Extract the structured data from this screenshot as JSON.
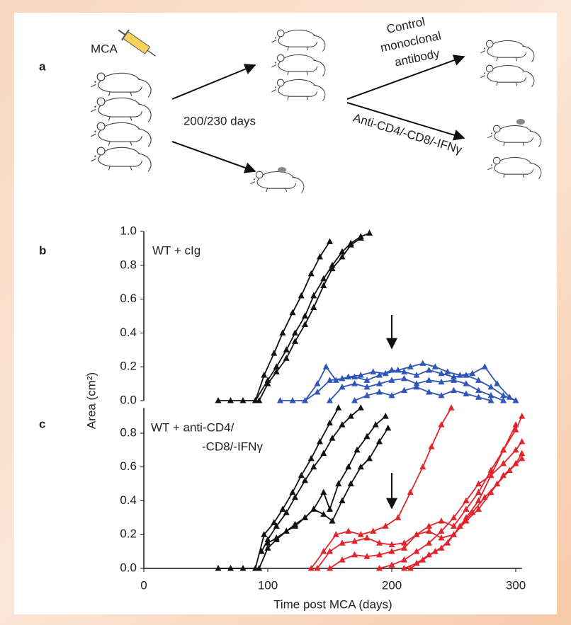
{
  "panel_a": {
    "label": "a",
    "mca": "MCA",
    "days": "200/230 days",
    "control": [
      "Control",
      "monoclonal",
      "antibody"
    ],
    "anti": "Anti-CD4/-CD8/-IFNγ"
  },
  "chart_data": [
    {
      "type": "line",
      "label": "b",
      "annotation": [
        "WT + cIg"
      ],
      "xlim": [
        0,
        305
      ],
      "ylim": [
        0,
        1
      ],
      "yticks": [
        {
          "value": 0,
          "label": "0.0"
        },
        0.2,
        0.4,
        0.6,
        0.8,
        {
          "value": 1,
          "label": "1.0"
        }
      ],
      "series": [
        {
          "color": "#111111",
          "x": [
            60,
            70,
            80,
            90,
            97,
            105,
            112,
            120,
            127,
            135,
            142,
            150
          ],
          "values": [
            0,
            0,
            0,
            0,
            0.15,
            0.28,
            0.4,
            0.52,
            0.62,
            0.75,
            0.85,
            0.94
          ]
        },
        {
          "color": "#111111",
          "x": [
            90,
            100,
            107,
            115,
            122,
            130,
            137,
            145,
            152,
            160,
            167,
            175,
            182
          ],
          "values": [
            0,
            0.12,
            0.2,
            0.3,
            0.4,
            0.5,
            0.62,
            0.72,
            0.8,
            0.88,
            0.93,
            0.97,
            0.99
          ]
        },
        {
          "color": "#111111",
          "x": [
            93,
            100,
            107,
            115,
            122,
            130,
            137,
            145,
            152,
            160,
            167,
            175
          ],
          "values": [
            0,
            0.1,
            0.17,
            0.25,
            0.35,
            0.45,
            0.55,
            0.68,
            0.78,
            0.85,
            0.92,
            0.96
          ]
        },
        {
          "color": "#2f55b8",
          "x": [
            110,
            120,
            130,
            140,
            147,
            155,
            165,
            175,
            185,
            195,
            205,
            215,
            225,
            235,
            245,
            255,
            265,
            275,
            285,
            295,
            300
          ],
          "values": [
            0,
            0,
            0,
            0.1,
            0.2,
            0.12,
            0.14,
            0.15,
            0.17,
            0.16,
            0.18,
            0.2,
            0.22,
            0.2,
            0.17,
            0.15,
            0.16,
            0.2,
            0.1,
            0.02,
            0
          ]
        },
        {
          "color": "#2f55b8",
          "x": [
            130,
            140,
            150,
            160,
            170,
            180,
            190,
            200,
            210,
            220,
            230,
            240,
            250,
            260,
            270,
            280,
            290,
            300
          ],
          "values": [
            0,
            0.05,
            0.12,
            0.13,
            0.14,
            0.12,
            0.15,
            0.18,
            0.17,
            0.15,
            0.18,
            0.16,
            0.14,
            0.15,
            0.12,
            0.08,
            0.03,
            0
          ]
        },
        {
          "color": "#2f55b8",
          "x": [
            150,
            160,
            170,
            180,
            190,
            200,
            210,
            220,
            230,
            240,
            250,
            260,
            270,
            280,
            290
          ],
          "values": [
            0,
            0.08,
            0.1,
            0.08,
            0.1,
            0.12,
            0.13,
            0.1,
            0.12,
            0.11,
            0.12,
            0.1,
            0.06,
            0.03,
            0
          ]
        },
        {
          "color": "#2f55b8",
          "x": [
            170,
            180,
            190,
            200,
            210,
            220,
            230,
            240,
            250,
            260,
            270,
            280
          ],
          "values": [
            0,
            0.03,
            0.05,
            0.03,
            0.06,
            0.08,
            0.05,
            0.03,
            0.06,
            0.04,
            0.02,
            0
          ]
        }
      ]
    },
    {
      "type": "line",
      "label": "c",
      "annotation": [
        "WT + anti-CD4/",
        "-CD8/-IFNγ"
      ],
      "xlim": [
        0,
        305
      ],
      "ylim": [
        0,
        0.95
      ],
      "yticks": [
        {
          "value": 0,
          "label": "0.0"
        },
        0.2,
        0.4,
        0.6,
        0.8
      ],
      "xticks": [
        0,
        100,
        200,
        300
      ],
      "xlabel": "Time post MCA (days)",
      "ylabel": "Area (cm²)",
      "series": [
        {
          "color": "#111111",
          "x": [
            60,
            70,
            80,
            90,
            97,
            105,
            112,
            120,
            127,
            135,
            142,
            150,
            157
          ],
          "values": [
            0,
            0,
            0,
            0,
            0.2,
            0.27,
            0.35,
            0.45,
            0.55,
            0.65,
            0.75,
            0.86,
            0.95
          ]
        },
        {
          "color": "#111111",
          "x": [
            95,
            100,
            107,
            115,
            122,
            130,
            137,
            145,
            152,
            160,
            167,
            175
          ],
          "values": [
            0.1,
            0.17,
            0.25,
            0.33,
            0.42,
            0.52,
            0.6,
            0.68,
            0.77,
            0.85,
            0.9,
            0.95
          ]
        },
        {
          "color": "#111111",
          "x": [
            93,
            100,
            107,
            115,
            122,
            130,
            137,
            145,
            150,
            157,
            165,
            172,
            180,
            187,
            195
          ],
          "values": [
            0,
            0.12,
            0.17,
            0.22,
            0.25,
            0.3,
            0.35,
            0.45,
            0.35,
            0.5,
            0.6,
            0.7,
            0.78,
            0.85,
            0.9
          ]
        },
        {
          "color": "#111111",
          "x": [
            100,
            107,
            115,
            122,
            130,
            137,
            145,
            152,
            160,
            167,
            175,
            182,
            190,
            197
          ],
          "values": [
            0.15,
            0.18,
            0.22,
            0.26,
            0.3,
            0.35,
            0.32,
            0.28,
            0.4,
            0.5,
            0.6,
            0.65,
            0.75,
            0.83
          ]
        },
        {
          "color": "#e3242b",
          "x": [
            135,
            145,
            155,
            165,
            175,
            185,
            195,
            205,
            215,
            225,
            232,
            240,
            248
          ],
          "values": [
            0,
            0.1,
            0.2,
            0.22,
            0.2,
            0.22,
            0.25,
            0.3,
            0.45,
            0.6,
            0.72,
            0.85,
            0.95
          ]
        },
        {
          "color": "#e3242b",
          "x": [
            140,
            150,
            160,
            170,
            180,
            190,
            200,
            210,
            220,
            230,
            240,
            250,
            260,
            270,
            280,
            290,
            300
          ],
          "values": [
            0,
            0.1,
            0.15,
            0.16,
            0.18,
            0.15,
            0.14,
            0.15,
            0.2,
            0.22,
            0.18,
            0.2,
            0.3,
            0.4,
            0.55,
            0.7,
            0.85
          ]
        },
        {
          "color": "#e3242b",
          "x": [
            150,
            160,
            170,
            180,
            190,
            200,
            210,
            220,
            230,
            240,
            250,
            260,
            270,
            280,
            290,
            300,
            305
          ],
          "values": [
            0,
            0.05,
            0.08,
            0.07,
            0.08,
            0.1,
            0.12,
            0.2,
            0.25,
            0.28,
            0.25,
            0.35,
            0.45,
            0.58,
            0.7,
            0.82,
            0.9
          ]
        },
        {
          "color": "#e3242b",
          "x": [
            190,
            200,
            210,
            220,
            230,
            240,
            250,
            260,
            270,
            280,
            290,
            300,
            305
          ],
          "values": [
            0,
            0.02,
            0.05,
            0.1,
            0.15,
            0.22,
            0.3,
            0.4,
            0.5,
            0.55,
            0.62,
            0.7,
            0.75
          ]
        },
        {
          "color": "#e3242b",
          "x": [
            210,
            220,
            230,
            240,
            250,
            260,
            270,
            280,
            290,
            300,
            305
          ],
          "values": [
            0,
            0.03,
            0.08,
            0.12,
            0.2,
            0.28,
            0.35,
            0.45,
            0.55,
            0.62,
            0.68
          ]
        },
        {
          "color": "#e3242b",
          "x": [
            215,
            225,
            235,
            245,
            255,
            265,
            275,
            285,
            295,
            305
          ],
          "values": [
            0,
            0.05,
            0.1,
            0.15,
            0.25,
            0.33,
            0.42,
            0.5,
            0.58,
            0.65
          ]
        }
      ]
    }
  ]
}
